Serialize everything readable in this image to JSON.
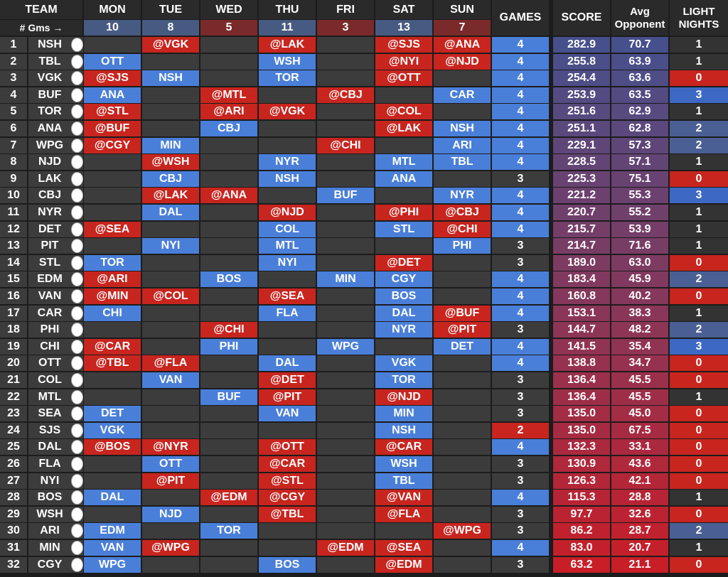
{
  "headers": {
    "team": "TEAM",
    "days": [
      "MON",
      "TUE",
      "WED",
      "THU",
      "FRI",
      "SAT",
      "SUN"
    ],
    "games": "GAMES",
    "score": "SCORE",
    "avg_opponent_line1": "Avg",
    "avg_opponent_line2": "Opponent",
    "light_nights_line1": "LIGHT",
    "light_nights_line2": "NIGHTS",
    "gms_label": "# Gms →",
    "day_game_counts": [
      "10",
      "8",
      "5",
      "11",
      "3",
      "13",
      "7"
    ]
  },
  "colors": {
    "home_blue": "#4a7fd9",
    "away_red": "#c8251f",
    "empty": "#3c3c3c",
    "header": "#2a2a2a",
    "light_nights_zero": "#c8251f",
    "light_nights_high": "#3d69c4",
    "games_two": "#c8251f",
    "games_three": "#3c3c3c",
    "games_four": "#4a7fd9"
  },
  "rows": [
    {
      "rank": "1",
      "team": "NSH",
      "mon": "",
      "tue": "@VGK",
      "wed": "",
      "thu": "@LAK",
      "fri": "",
      "sat": "@SJS",
      "sun": "@ANA",
      "games": "4",
      "score": "282.9",
      "avg": "70.7",
      "light": "1"
    },
    {
      "rank": "2",
      "team": "TBL",
      "mon": "OTT",
      "tue": "",
      "wed": "",
      "thu": "WSH",
      "fri": "",
      "sat": "@NYI",
      "sun": "@NJD",
      "games": "4",
      "score": "255.8",
      "avg": "63.9",
      "light": "1"
    },
    {
      "rank": "3",
      "team": "VGK",
      "mon": "@SJS",
      "tue": "NSH",
      "wed": "",
      "thu": "TOR",
      "fri": "",
      "sat": "@OTT",
      "sun": "",
      "games": "4",
      "score": "254.4",
      "avg": "63.6",
      "light": "0"
    },
    {
      "rank": "4",
      "team": "BUF",
      "mon": "ANA",
      "tue": "",
      "wed": "@MTL",
      "thu": "",
      "fri": "@CBJ",
      "sat": "",
      "sun": "CAR",
      "games": "4",
      "score": "253.9",
      "avg": "63.5",
      "light": "3"
    },
    {
      "rank": "5",
      "team": "TOR",
      "mon": "@STL",
      "tue": "",
      "wed": "@ARI",
      "thu": "@VGK",
      "fri": "",
      "sat": "@COL",
      "sun": "",
      "games": "4",
      "score": "251.6",
      "avg": "62.9",
      "light": "1"
    },
    {
      "rank": "6",
      "team": "ANA",
      "mon": "@BUF",
      "tue": "",
      "wed": "CBJ",
      "thu": "",
      "fri": "",
      "sat": "@LAK",
      "sun": "NSH",
      "games": "4",
      "score": "251.1",
      "avg": "62.8",
      "light": "2"
    },
    {
      "rank": "7",
      "team": "WPG",
      "mon": "@CGY",
      "tue": "MIN",
      "wed": "",
      "thu": "",
      "fri": "@CHI",
      "sat": "",
      "sun": "ARI",
      "games": "4",
      "score": "229.1",
      "avg": "57.3",
      "light": "2"
    },
    {
      "rank": "8",
      "team": "NJD",
      "mon": "",
      "tue": "@WSH",
      "wed": "",
      "thu": "NYR",
      "fri": "",
      "sat": "MTL",
      "sun": "TBL",
      "games": "4",
      "score": "228.5",
      "avg": "57.1",
      "light": "1"
    },
    {
      "rank": "9",
      "team": "LAK",
      "mon": "",
      "tue": "CBJ",
      "wed": "",
      "thu": "NSH",
      "fri": "",
      "sat": "ANA",
      "sun": "",
      "games": "3",
      "score": "225.3",
      "avg": "75.1",
      "light": "0"
    },
    {
      "rank": "10",
      "team": "CBJ",
      "mon": "",
      "tue": "@LAK",
      "wed": "@ANA",
      "thu": "",
      "fri": "BUF",
      "sat": "",
      "sun": "NYR",
      "games": "4",
      "score": "221.2",
      "avg": "55.3",
      "light": "3"
    },
    {
      "rank": "11",
      "team": "NYR",
      "mon": "",
      "tue": "DAL",
      "wed": "",
      "thu": "@NJD",
      "fri": "",
      "sat": "@PHI",
      "sun": "@CBJ",
      "games": "4",
      "score": "220.7",
      "avg": "55.2",
      "light": "1"
    },
    {
      "rank": "12",
      "team": "DET",
      "mon": "@SEA",
      "tue": "",
      "wed": "",
      "thu": "COL",
      "fri": "",
      "sat": "STL",
      "sun": "@CHI",
      "games": "4",
      "score": "215.7",
      "avg": "53.9",
      "light": "1"
    },
    {
      "rank": "13",
      "team": "PIT",
      "mon": "",
      "tue": "NYI",
      "wed": "",
      "thu": "MTL",
      "fri": "",
      "sat": "",
      "sun": "PHI",
      "games": "3",
      "score": "214.7",
      "avg": "71.6",
      "light": "1"
    },
    {
      "rank": "14",
      "team": "STL",
      "mon": "TOR",
      "tue": "",
      "wed": "",
      "thu": "NYI",
      "fri": "",
      "sat": "@DET",
      "sun": "",
      "games": "3",
      "score": "189.0",
      "avg": "63.0",
      "light": "0"
    },
    {
      "rank": "15",
      "team": "EDM",
      "mon": "@ARI",
      "tue": "",
      "wed": "BOS",
      "thu": "",
      "fri": "MIN",
      "sat": "CGY",
      "sun": "",
      "games": "4",
      "score": "183.4",
      "avg": "45.9",
      "light": "2"
    },
    {
      "rank": "16",
      "team": "VAN",
      "mon": "@MIN",
      "tue": "@COL",
      "wed": "",
      "thu": "@SEA",
      "fri": "",
      "sat": "BOS",
      "sun": "",
      "games": "4",
      "score": "160.8",
      "avg": "40.2",
      "light": "0"
    },
    {
      "rank": "17",
      "team": "CAR",
      "mon": "CHI",
      "tue": "",
      "wed": "",
      "thu": "FLA",
      "fri": "",
      "sat": "DAL",
      "sun": "@BUF",
      "games": "4",
      "score": "153.1",
      "avg": "38.3",
      "light": "1"
    },
    {
      "rank": "18",
      "team": "PHI",
      "mon": "",
      "tue": "",
      "wed": "@CHI",
      "thu": "",
      "fri": "",
      "sat": "NYR",
      "sun": "@PIT",
      "games": "3",
      "score": "144.7",
      "avg": "48.2",
      "light": "2"
    },
    {
      "rank": "19",
      "team": "CHI",
      "mon": "@CAR",
      "tue": "",
      "wed": "PHI",
      "thu": "",
      "fri": "WPG",
      "sat": "",
      "sun": "DET",
      "games": "4",
      "score": "141.5",
      "avg": "35.4",
      "light": "3"
    },
    {
      "rank": "20",
      "team": "OTT",
      "mon": "@TBL",
      "tue": "@FLA",
      "wed": "",
      "thu": "DAL",
      "fri": "",
      "sat": "VGK",
      "sun": "",
      "games": "4",
      "score": "138.8",
      "avg": "34.7",
      "light": "0"
    },
    {
      "rank": "21",
      "team": "COL",
      "mon": "",
      "tue": "VAN",
      "wed": "",
      "thu": "@DET",
      "fri": "",
      "sat": "TOR",
      "sun": "",
      "games": "3",
      "score": "136.4",
      "avg": "45.5",
      "light": "0"
    },
    {
      "rank": "22",
      "team": "MTL",
      "mon": "",
      "tue": "",
      "wed": "BUF",
      "thu": "@PIT",
      "fri": "",
      "sat": "@NJD",
      "sun": "",
      "games": "3",
      "score": "136.4",
      "avg": "45.5",
      "light": "1"
    },
    {
      "rank": "23",
      "team": "SEA",
      "mon": "DET",
      "tue": "",
      "wed": "",
      "thu": "VAN",
      "fri": "",
      "sat": "MIN",
      "sun": "",
      "games": "3",
      "score": "135.0",
      "avg": "45.0",
      "light": "0"
    },
    {
      "rank": "24",
      "team": "SJS",
      "mon": "VGK",
      "tue": "",
      "wed": "",
      "thu": "",
      "fri": "",
      "sat": "NSH",
      "sun": "",
      "games": "2",
      "score": "135.0",
      "avg": "67.5",
      "light": "0"
    },
    {
      "rank": "25",
      "team": "DAL",
      "mon": "@BOS",
      "tue": "@NYR",
      "wed": "",
      "thu": "@OTT",
      "fri": "",
      "sat": "@CAR",
      "sun": "",
      "games": "4",
      "score": "132.3",
      "avg": "33.1",
      "light": "0"
    },
    {
      "rank": "26",
      "team": "FLA",
      "mon": "",
      "tue": "OTT",
      "wed": "",
      "thu": "@CAR",
      "fri": "",
      "sat": "WSH",
      "sun": "",
      "games": "3",
      "score": "130.9",
      "avg": "43.6",
      "light": "0"
    },
    {
      "rank": "27",
      "team": "NYI",
      "mon": "",
      "tue": "@PIT",
      "wed": "",
      "thu": "@STL",
      "fri": "",
      "sat": "TBL",
      "sun": "",
      "games": "3",
      "score": "126.3",
      "avg": "42.1",
      "light": "0"
    },
    {
      "rank": "28",
      "team": "BOS",
      "mon": "DAL",
      "tue": "",
      "wed": "@EDM",
      "thu": "@CGY",
      "fri": "",
      "sat": "@VAN",
      "sun": "",
      "games": "4",
      "score": "115.3",
      "avg": "28.8",
      "light": "1"
    },
    {
      "rank": "29",
      "team": "WSH",
      "mon": "",
      "tue": "NJD",
      "wed": "",
      "thu": "@TBL",
      "fri": "",
      "sat": "@FLA",
      "sun": "",
      "games": "3",
      "score": "97.7",
      "avg": "32.6",
      "light": "0"
    },
    {
      "rank": "30",
      "team": "ARI",
      "mon": "EDM",
      "tue": "",
      "wed": "TOR",
      "thu": "",
      "fri": "",
      "sat": "",
      "sun": "@WPG",
      "games": "3",
      "score": "86.2",
      "avg": "28.7",
      "light": "2"
    },
    {
      "rank": "31",
      "team": "MIN",
      "mon": "VAN",
      "tue": "@WPG",
      "wed": "",
      "thu": "",
      "fri": "@EDM",
      "sat": "@SEA",
      "sun": "",
      "games": "4",
      "score": "83.0",
      "avg": "20.7",
      "light": "1"
    },
    {
      "rank": "32",
      "team": "CGY",
      "mon": "WPG",
      "tue": "",
      "wed": "",
      "thu": "BOS",
      "fri": "",
      "sat": "@EDM",
      "sun": "",
      "games": "3",
      "score": "63.2",
      "avg": "21.1",
      "light": "0"
    }
  ]
}
